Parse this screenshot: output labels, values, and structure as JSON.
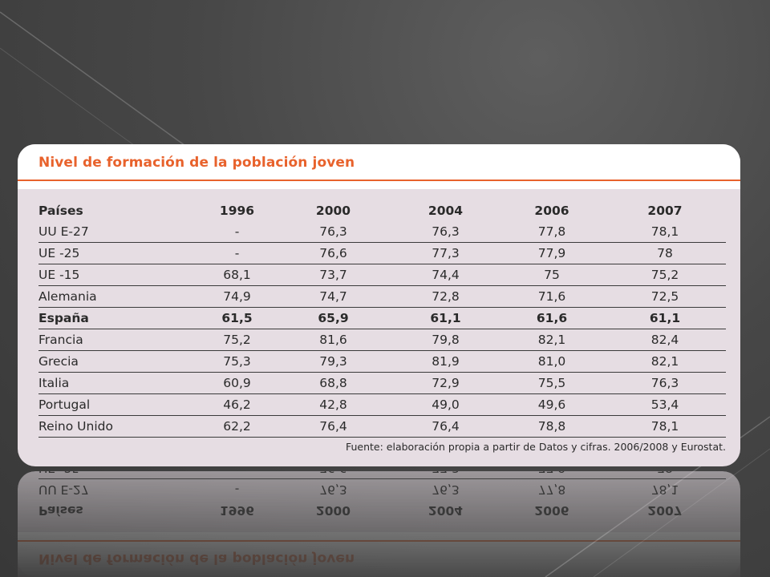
{
  "slide": {
    "title": "Nivel de formación de la población joven",
    "source": "Fuente: elaboración propia a partir de Datos y cifras. 2006/2008 y Eurostat."
  },
  "table": {
    "headers": [
      "Países",
      "1996",
      "2000",
      "2004",
      "2006",
      "2007"
    ],
    "rows": [
      {
        "cells": [
          "UU E-27",
          "-",
          "76,3",
          "76,3",
          "77,8",
          "78,1"
        ]
      },
      {
        "cells": [
          "UE -25",
          "-",
          "76,6",
          "77,3",
          "77,9",
          "78"
        ]
      },
      {
        "cells": [
          "UE -15",
          "68,1",
          "73,7",
          "74,4",
          "75",
          "75,2"
        ]
      },
      {
        "cells": [
          "Alemania",
          "74,9",
          "74,7",
          "72,8",
          "71,6",
          "72,5"
        ]
      },
      {
        "cells": [
          "España",
          "61,5",
          "65,9",
          "61,1",
          "61,6",
          "61,1"
        ]
      },
      {
        "cells": [
          "Francia",
          "75,2",
          "81,6",
          "79,8",
          "82,1",
          "82,4"
        ]
      },
      {
        "cells": [
          "Grecia",
          "75,3",
          "79,3",
          "81,9",
          "81,0",
          "82,1"
        ]
      },
      {
        "cells": [
          "Italia",
          "60,9",
          "68,8",
          "72,9",
          "75,5",
          "76,3"
        ]
      },
      {
        "cells": [
          "Portugal",
          "46,2",
          "42,8",
          "49,0",
          "49,6",
          "53,4"
        ]
      },
      {
        "cells": [
          "Reino Unido",
          "62,2",
          "76,4",
          "76,4",
          "78,8",
          "78,1"
        ]
      }
    ]
  },
  "colors": {
    "accent": "#e8622c",
    "card_body": "#e6dde3",
    "background": "#474747"
  }
}
